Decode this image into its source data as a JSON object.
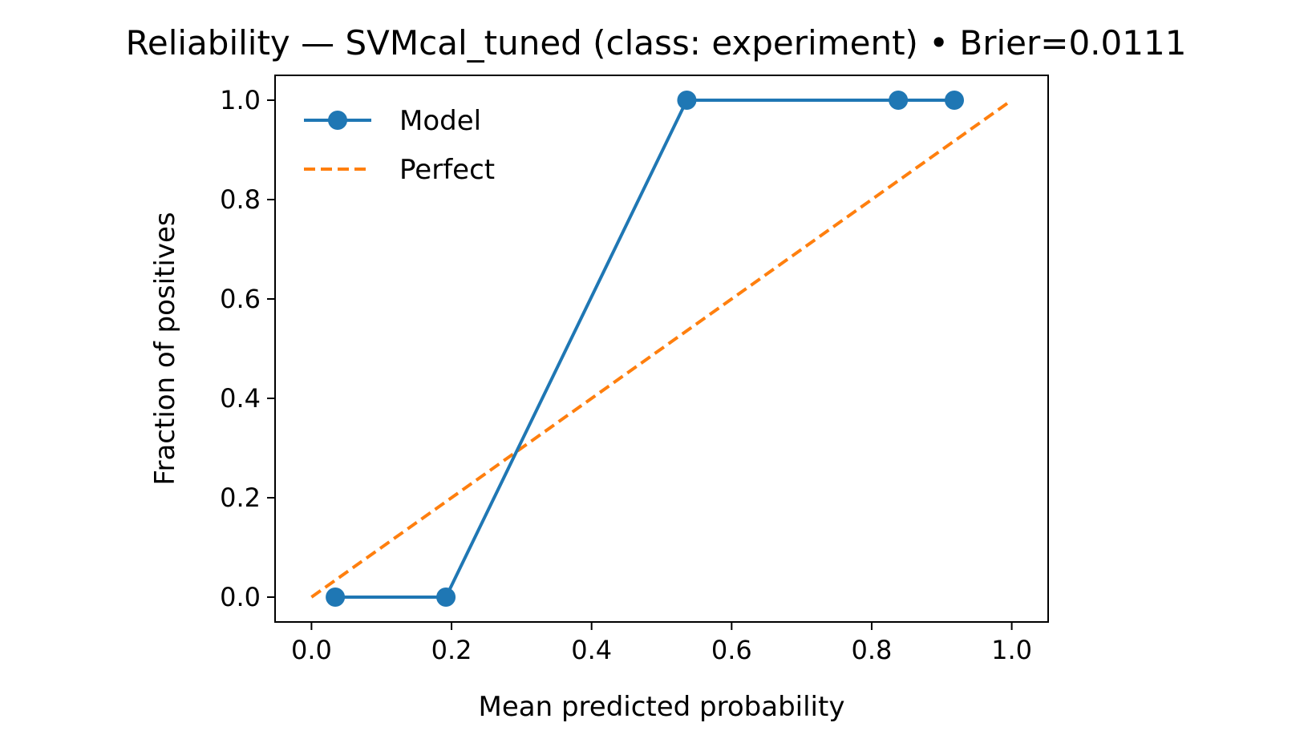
{
  "chart_data": {
    "type": "line",
    "title": "Reliability — SVMcal_tuned (class: experiment) • Brier=0.0111",
    "xlabel": "Mean predicted probability",
    "ylabel": "Fraction of positives",
    "xlim": [
      -0.052,
      1.052
    ],
    "ylim": [
      -0.05,
      1.05
    ],
    "x_ticks": [
      "0.0",
      "0.2",
      "0.4",
      "0.6",
      "0.8",
      "1.0"
    ],
    "y_ticks": [
      "0.0",
      "0.2",
      "0.4",
      "0.6",
      "0.8",
      "1.0"
    ],
    "grid": false,
    "legend_position": "upper-left",
    "series": [
      {
        "name": "Model",
        "color": "#1f77b4",
        "marker": "circle",
        "line_style": "solid",
        "x": [
          0.034,
          0.192,
          0.536,
          0.838,
          0.918
        ],
        "y": [
          0.0,
          0.0,
          1.0,
          1.0,
          1.0
        ]
      },
      {
        "name": "Perfect",
        "color": "#ff7f0e",
        "marker": "none",
        "line_style": "dashed",
        "x": [
          0.0,
          1.0
        ],
        "y": [
          0.0,
          1.0
        ]
      }
    ]
  }
}
